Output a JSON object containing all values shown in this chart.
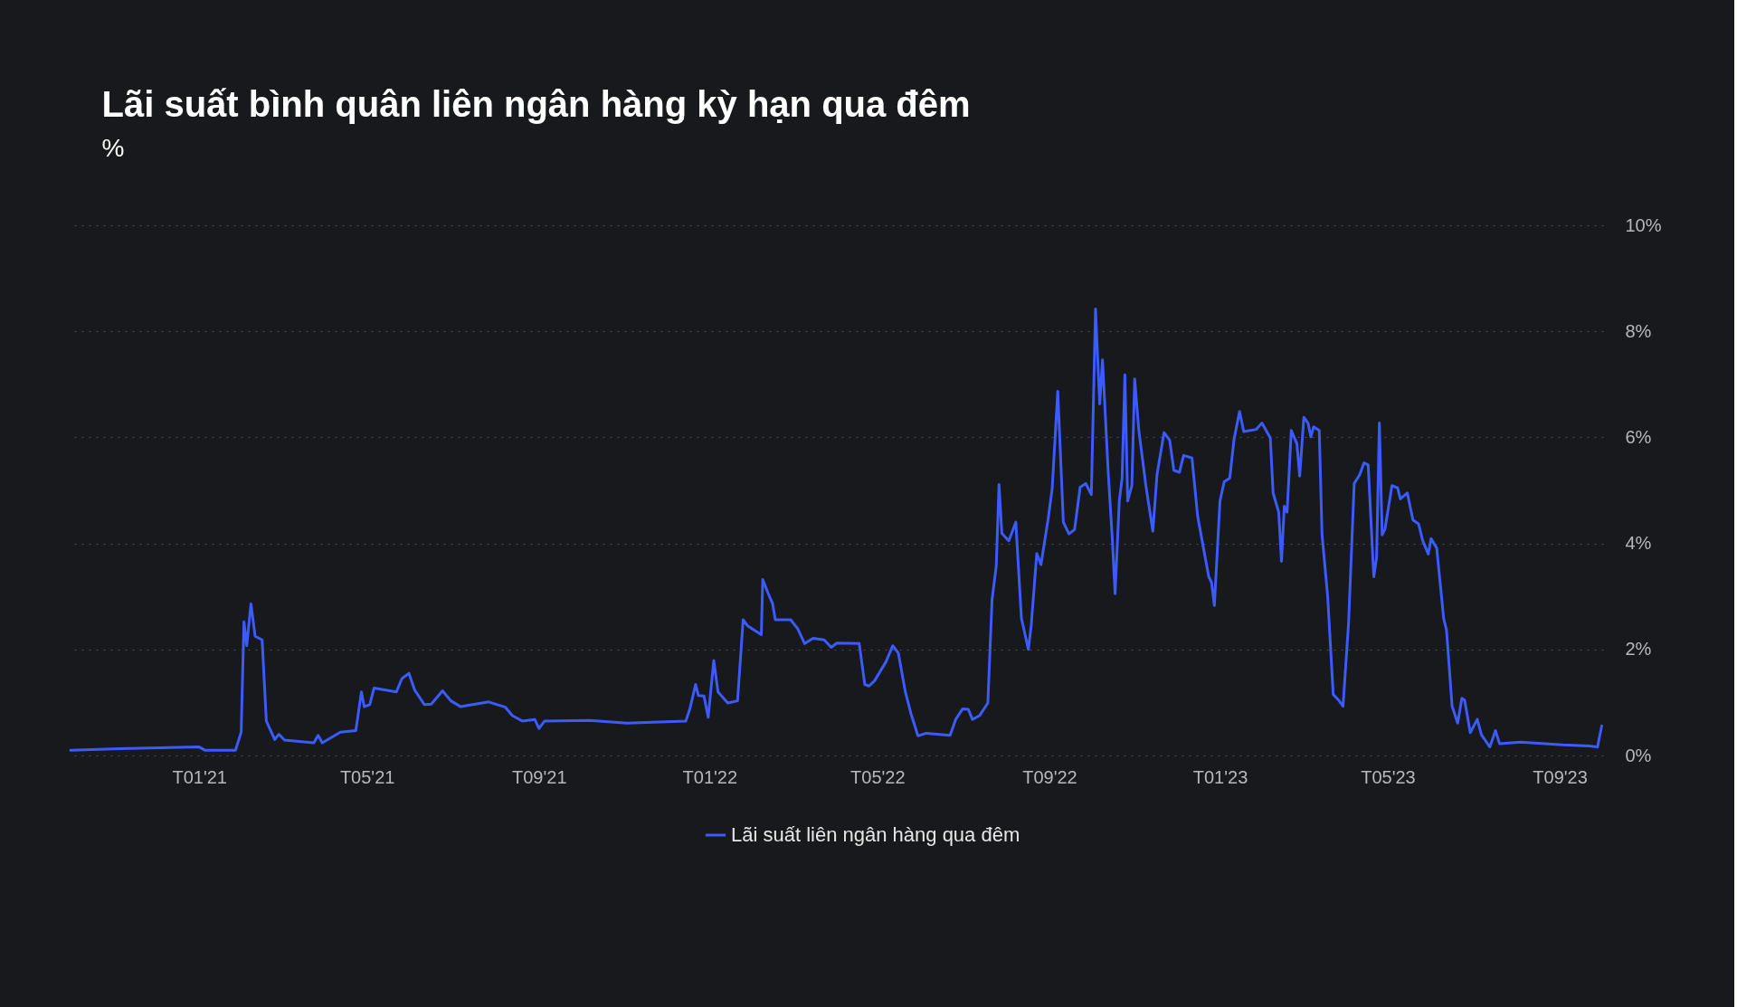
{
  "chart_data": {
    "type": "line",
    "title": "Lãi suất bình quân liên ngân hàng kỳ hạn qua đêm",
    "subtitle": "%",
    "x": [
      "2020-10-01",
      "2020-11-05",
      "2021-01-01",
      "2021-01-05",
      "2021-01-27",
      "2021-01-31",
      "2021-02-02",
      "2021-02-04",
      "2021-02-07",
      "2021-02-10",
      "2021-02-15",
      "2021-02-18",
      "2021-02-24",
      "2021-02-27",
      "2021-03-03",
      "2021-03-24",
      "2021-03-27",
      "2021-03-30",
      "2021-04-12",
      "2021-04-23",
      "2021-04-27",
      "2021-04-29",
      "2021-05-03",
      "2021-05-06",
      "2021-05-22",
      "2021-05-26",
      "2021-05-31",
      "2021-06-04",
      "2021-06-11",
      "2021-06-16",
      "2021-06-24",
      "2021-06-30",
      "2021-07-07",
      "2021-07-27",
      "2021-08-08",
      "2021-08-13",
      "2021-08-20",
      "2021-08-29",
      "2021-09-01",
      "2021-09-05",
      "2021-10-07",
      "2021-11-03",
      "2021-12-15",
      "2021-12-18",
      "2021-12-22",
      "2021-12-24",
      "2021-12-28",
      "2021-12-31",
      "2022-01-04",
      "2022-01-07",
      "2022-01-14",
      "2022-01-21",
      "2022-01-25",
      "2022-01-28",
      "2022-02-07",
      "2022-02-08",
      "2022-02-12",
      "2022-02-15",
      "2022-02-17",
      "2022-02-28",
      "2022-03-05",
      "2022-03-10",
      "2022-03-16",
      "2022-03-24",
      "2022-03-29",
      "2022-04-02",
      "2022-04-18",
      "2022-04-22",
      "2022-04-25",
      "2022-04-29",
      "2022-05-07",
      "2022-05-12",
      "2022-05-16",
      "2022-05-21",
      "2022-05-25",
      "2022-05-30",
      "2022-06-05",
      "2022-06-22",
      "2022-06-26",
      "2022-07-01",
      "2022-07-05",
      "2022-07-08",
      "2022-07-13",
      "2022-07-19",
      "2022-07-22",
      "2022-07-25",
      "2022-07-27",
      "2022-07-29",
      "2022-08-03",
      "2022-08-08",
      "2022-08-12",
      "2022-08-17",
      "2022-08-19",
      "2022-08-23",
      "2022-08-26",
      "2022-08-31",
      "2022-09-03",
      "2022-09-07",
      "2022-09-11",
      "2022-09-15",
      "2022-09-19",
      "2022-09-23",
      "2022-09-27",
      "2022-10-01",
      "2022-10-04",
      "2022-10-07",
      "2022-10-09",
      "2022-10-13",
      "2022-10-16",
      "2022-10-18",
      "2022-10-21",
      "2022-10-23",
      "2022-10-25",
      "2022-10-27",
      "2022-10-30",
      "2022-11-01",
      "2022-11-04",
      "2022-11-09",
      "2022-11-14",
      "2022-11-17",
      "2022-11-22",
      "2022-11-26",
      "2022-11-29",
      "2022-12-03",
      "2022-12-06",
      "2022-12-12",
      "2022-12-16",
      "2022-12-20",
      "2022-12-24",
      "2022-12-26",
      "2022-12-28",
      "2023-01-01",
      "2023-01-04",
      "2023-01-08",
      "2023-01-11",
      "2023-01-15",
      "2023-01-18",
      "2023-01-27",
      "2023-01-31",
      "2023-02-06",
      "2023-02-08",
      "2023-02-12",
      "2023-02-14",
      "2023-02-16",
      "2023-02-18",
      "2023-02-21",
      "2023-02-25",
      "2023-02-27",
      "2023-03-02",
      "2023-03-05",
      "2023-03-07",
      "2023-03-09",
      "2023-03-13",
      "2023-03-15",
      "2023-03-19",
      "2023-03-23",
      "2023-03-27",
      "2023-03-30",
      "2023-04-03",
      "2023-04-07",
      "2023-04-11",
      "2023-04-14",
      "2023-04-17",
      "2023-04-21",
      "2023-04-23",
      "2023-04-25",
      "2023-04-27",
      "2023-04-29",
      "2023-05-04",
      "2023-05-08",
      "2023-05-10",
      "2023-05-15",
      "2023-05-19",
      "2023-05-23",
      "2023-05-26",
      "2023-05-30",
      "2023-06-01",
      "2023-06-05",
      "2023-06-10",
      "2023-06-12",
      "2023-06-16",
      "2023-06-20",
      "2023-06-23",
      "2023-06-25",
      "2023-06-29",
      "2023-07-04",
      "2023-07-07",
      "2023-07-13",
      "2023-07-17",
      "2023-07-20",
      "2023-08-04",
      "2023-09-03",
      "2023-09-22",
      "2023-09-28",
      "2023-10-01"
    ],
    "series": [
      {
        "name": "Lãi suất liên ngân hàng qua đêm",
        "color": "#3b5bfd",
        "values": [
          0.1,
          0.13,
          0.16,
          0.1,
          0.1,
          0.44,
          2.52,
          2.07,
          2.86,
          2.25,
          2.18,
          0.65,
          0.3,
          0.4,
          0.29,
          0.24,
          0.38,
          0.24,
          0.44,
          0.47,
          1.2,
          0.92,
          0.96,
          1.27,
          1.2,
          1.45,
          1.55,
          1.24,
          0.96,
          0.97,
          1.22,
          1.03,
          0.92,
          1.01,
          0.91,
          0.75,
          0.65,
          0.68,
          0.51,
          0.65,
          0.66,
          0.61,
          0.65,
          0.89,
          1.34,
          1.13,
          1.12,
          0.72,
          1.79,
          1.2,
          0.99,
          1.03,
          2.56,
          2.45,
          2.28,
          3.32,
          3.05,
          2.87,
          2.56,
          2.56,
          2.39,
          2.11,
          2.21,
          2.18,
          2.04,
          2.12,
          2.11,
          1.34,
          1.31,
          1.41,
          1.76,
          2.07,
          1.93,
          1.2,
          0.79,
          0.37,
          0.42,
          0.38,
          0.68,
          0.88,
          0.87,
          0.68,
          0.75,
          0.99,
          2.94,
          3.57,
          5.11,
          4.19,
          4.05,
          4.4,
          2.59,
          2.0,
          2.45,
          3.81,
          3.6,
          4.44,
          5.03,
          6.87,
          4.4,
          4.18,
          4.26,
          5.06,
          5.13,
          4.92,
          8.42,
          6.63,
          7.46,
          5.38,
          4.09,
          3.05,
          4.8,
          5.23,
          7.18,
          4.8,
          5.09,
          7.1,
          6.13,
          5.09,
          4.23,
          5.3,
          6.09,
          5.95,
          5.38,
          5.34,
          5.66,
          5.61,
          4.52,
          3.94,
          3.37,
          3.26,
          2.83,
          4.8,
          5.16,
          5.23,
          5.95,
          6.49,
          6.11,
          6.15,
          6.27,
          5.99,
          4.95,
          4.59,
          3.66,
          4.7,
          4.59,
          6.13,
          5.88,
          5.27,
          6.38,
          6.27,
          6.01,
          6.2,
          6.13,
          4.16,
          3.01,
          1.15,
          1.04,
          0.93,
          2.51,
          5.13,
          5.3,
          5.52,
          5.48,
          3.37,
          3.73,
          6.27,
          4.16,
          4.27,
          5.09,
          5.05,
          4.84,
          4.95,
          4.44,
          4.37,
          4.05,
          3.8,
          4.09,
          3.91,
          2.58,
          2.37,
          0.93,
          0.61,
          1.08,
          1.04,
          0.43,
          0.68,
          0.39,
          0.16,
          0.47,
          0.22,
          0.25,
          0.2,
          0.18,
          0.16,
          0.56
        ]
      }
    ],
    "xlim": [
      "2020-10-01",
      "2023-10-02"
    ],
    "xticks": [
      {
        "value": "2021-01-01",
        "label": "T01'21"
      },
      {
        "value": "2021-05-01",
        "label": "T05'21"
      },
      {
        "value": "2021-09-01",
        "label": "T09'21"
      },
      {
        "value": "2022-01-01",
        "label": "T01'22"
      },
      {
        "value": "2022-05-01",
        "label": "T05'22"
      },
      {
        "value": "2022-09-01",
        "label": "T09'22"
      },
      {
        "value": "2023-01-01",
        "label": "T01'23"
      },
      {
        "value": "2023-05-01",
        "label": "T05'23"
      },
      {
        "value": "2023-09-01",
        "label": "T09'23"
      }
    ],
    "ylim": [
      0,
      10
    ],
    "yticks": [
      {
        "value": 0,
        "label": "0%"
      },
      {
        "value": 2,
        "label": "2%"
      },
      {
        "value": 4,
        "label": "4%"
      },
      {
        "value": 6,
        "label": "6%"
      },
      {
        "value": 8,
        "label": "8%"
      },
      {
        "value": 10,
        "label": "10%"
      }
    ],
    "grid": "y",
    "legend": "bottom",
    "marker": "none",
    "line_style": "solid"
  }
}
